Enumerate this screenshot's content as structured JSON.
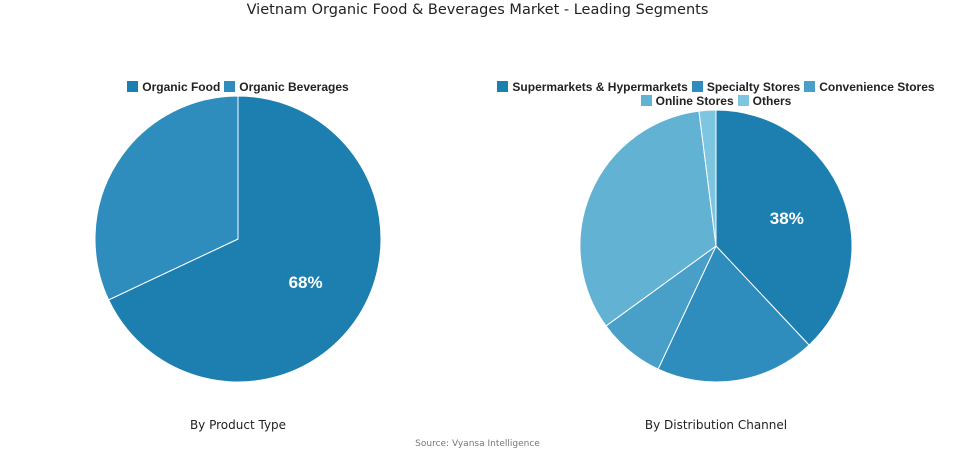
{
  "title": "Vietnam Organic Food & Beverages Market - Leading Segments",
  "source": "Source: Vyansa Intelligence",
  "chart_data": [
    {
      "type": "pie",
      "caption": "By Product Type",
      "slices": [
        {
          "label": "Organic Food",
          "value": 68,
          "color": "#1c7fb0",
          "show_label": true
        },
        {
          "label": "Organic Beverages",
          "value": 32,
          "color": "#2e8dbc",
          "show_label": false
        }
      ],
      "legend": "top"
    },
    {
      "type": "pie",
      "caption": "By Distribution Channel",
      "slices": [
        {
          "label": "Supermarkets & Hypermarkets",
          "value": 38,
          "color": "#1c7fb0",
          "show_label": true
        },
        {
          "label": "Specialty Stores",
          "value": 19,
          "color": "#2e8dbc",
          "show_label": false
        },
        {
          "label": "Convenience Stores",
          "value": 8,
          "color": "#48a0c9",
          "show_label": false
        },
        {
          "label": "Online Stores",
          "value": 33,
          "color": "#62b2d4",
          "show_label": false
        },
        {
          "label": "Others",
          "value": 2,
          "color": "#7ec6e0",
          "show_label": false
        }
      ],
      "legend": "top"
    }
  ]
}
